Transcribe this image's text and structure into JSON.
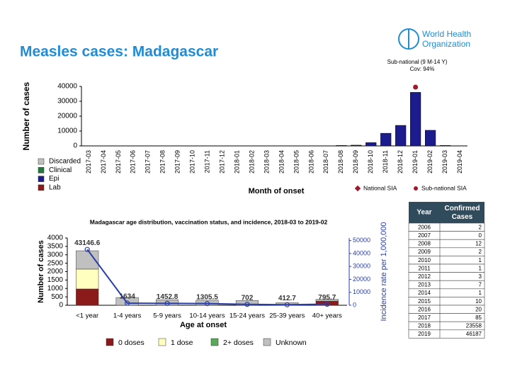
{
  "title": "Measles cases: Madagascar",
  "logo": [
    "World Health",
    "Organization"
  ],
  "chart_data": [
    {
      "type": "bar",
      "y_label": "Number of cases",
      "x_label": "Month of onset",
      "categories": [
        "2017-03",
        "2017-04",
        "2017-05",
        "2017-06",
        "2017-07",
        "2017-08",
        "2017-09",
        "2017-10",
        "2017-11",
        "2017-12",
        "2018-01",
        "2018-02",
        "2018-03",
        "2018-04",
        "2018-05",
        "2018-06",
        "2018-07",
        "2018-08",
        "2018-09",
        "2018-10",
        "2018-11",
        "2018-12",
        "2019-01",
        "2019-02",
        "2019-03",
        "2019-04"
      ],
      "values": [
        0,
        0,
        0,
        0,
        0,
        0,
        0,
        100,
        0,
        0,
        0,
        0,
        0,
        0,
        0,
        0,
        0,
        300,
        500,
        2200,
        8500,
        13800,
        36000,
        10500,
        300,
        0
      ],
      "color": "#1c1c8e",
      "ylim": [
        0,
        40000
      ],
      "yticks": [
        0,
        10000,
        20000,
        30000,
        40000
      ],
      "legend": [
        {
          "name": "Discarded",
          "color": "#c0c0c0"
        },
        {
          "name": "Clinical",
          "color": "#1e7b3a"
        },
        {
          "name": "Epi",
          "color": "#1c1c8e"
        },
        {
          "name": "Lab",
          "color": "#8b1a1a"
        }
      ],
      "sia_legend": [
        {
          "name": "National SIA",
          "color": "#a01830"
        },
        {
          "name": "Sub-national SIA",
          "color": "#a01830"
        }
      ],
      "sia_month": "2019-01",
      "sia_annotation": [
        "Sub-national (9 M-14 Y)",
        "Cov: 94%"
      ]
    },
    {
      "type": "bar",
      "stacked": true,
      "title": "Madagascar age distribution, vaccination status, and incidence, 2018-03 to 2019-02",
      "y_label": "Number of cases",
      "y2_label": "Incidence rate per 1,000,000",
      "x_label": "Age at onset",
      "categories": [
        "<1 year",
        "1-4 years",
        "5-9 years",
        "10-14 years",
        "15-24 years",
        "25-39 years",
        "40+ years"
      ],
      "series": [
        {
          "name": "0 doses",
          "color": "#8b1a1a",
          "values": [
            970,
            0,
            0,
            0,
            0,
            0,
            250
          ]
        },
        {
          "name": "1 dose",
          "color": "#ffffc0",
          "values": [
            1180,
            0,
            0,
            0,
            0,
            0,
            0
          ]
        },
        {
          "name": "2+ doses",
          "color": "#5aa85a",
          "values": [
            0,
            0,
            0,
            0,
            0,
            0,
            0
          ]
        },
        {
          "name": "Unknown",
          "color": "#c0c0c0",
          "values": [
            1090,
            460,
            330,
            300,
            280,
            150,
            100
          ]
        },
        {
          "name": "Incidence",
          "type": "line",
          "axis": "y2",
          "color": "#2a3ea8",
          "values": [
            43146.6,
            1634,
            1452.8,
            1305.5,
            702,
            412.7,
            795.7
          ]
        }
      ],
      "ylim": [
        0,
        4000
      ],
      "yticks": [
        0,
        500,
        1000,
        1500,
        2000,
        2500,
        3000,
        3500,
        4000
      ],
      "y2lim": [
        0,
        52000
      ],
      "y2ticks": [
        0,
        10000,
        20000,
        30000,
        40000,
        50000
      ]
    }
  ],
  "table": {
    "header": [
      "Year",
      "Confirmed Cases"
    ],
    "rows": [
      [
        "2006",
        "2"
      ],
      [
        "2007",
        "0"
      ],
      [
        "2008",
        "12"
      ],
      [
        "2009",
        "2"
      ],
      [
        "2010",
        "1"
      ],
      [
        "2011",
        "1"
      ],
      [
        "2012",
        "3"
      ],
      [
        "2013",
        "7"
      ],
      [
        "2014",
        "1"
      ],
      [
        "2015",
        "10"
      ],
      [
        "2016",
        "20"
      ],
      [
        "2017",
        "85"
      ],
      [
        "2018",
        "23558"
      ],
      [
        "2019",
        "46187"
      ]
    ]
  }
}
